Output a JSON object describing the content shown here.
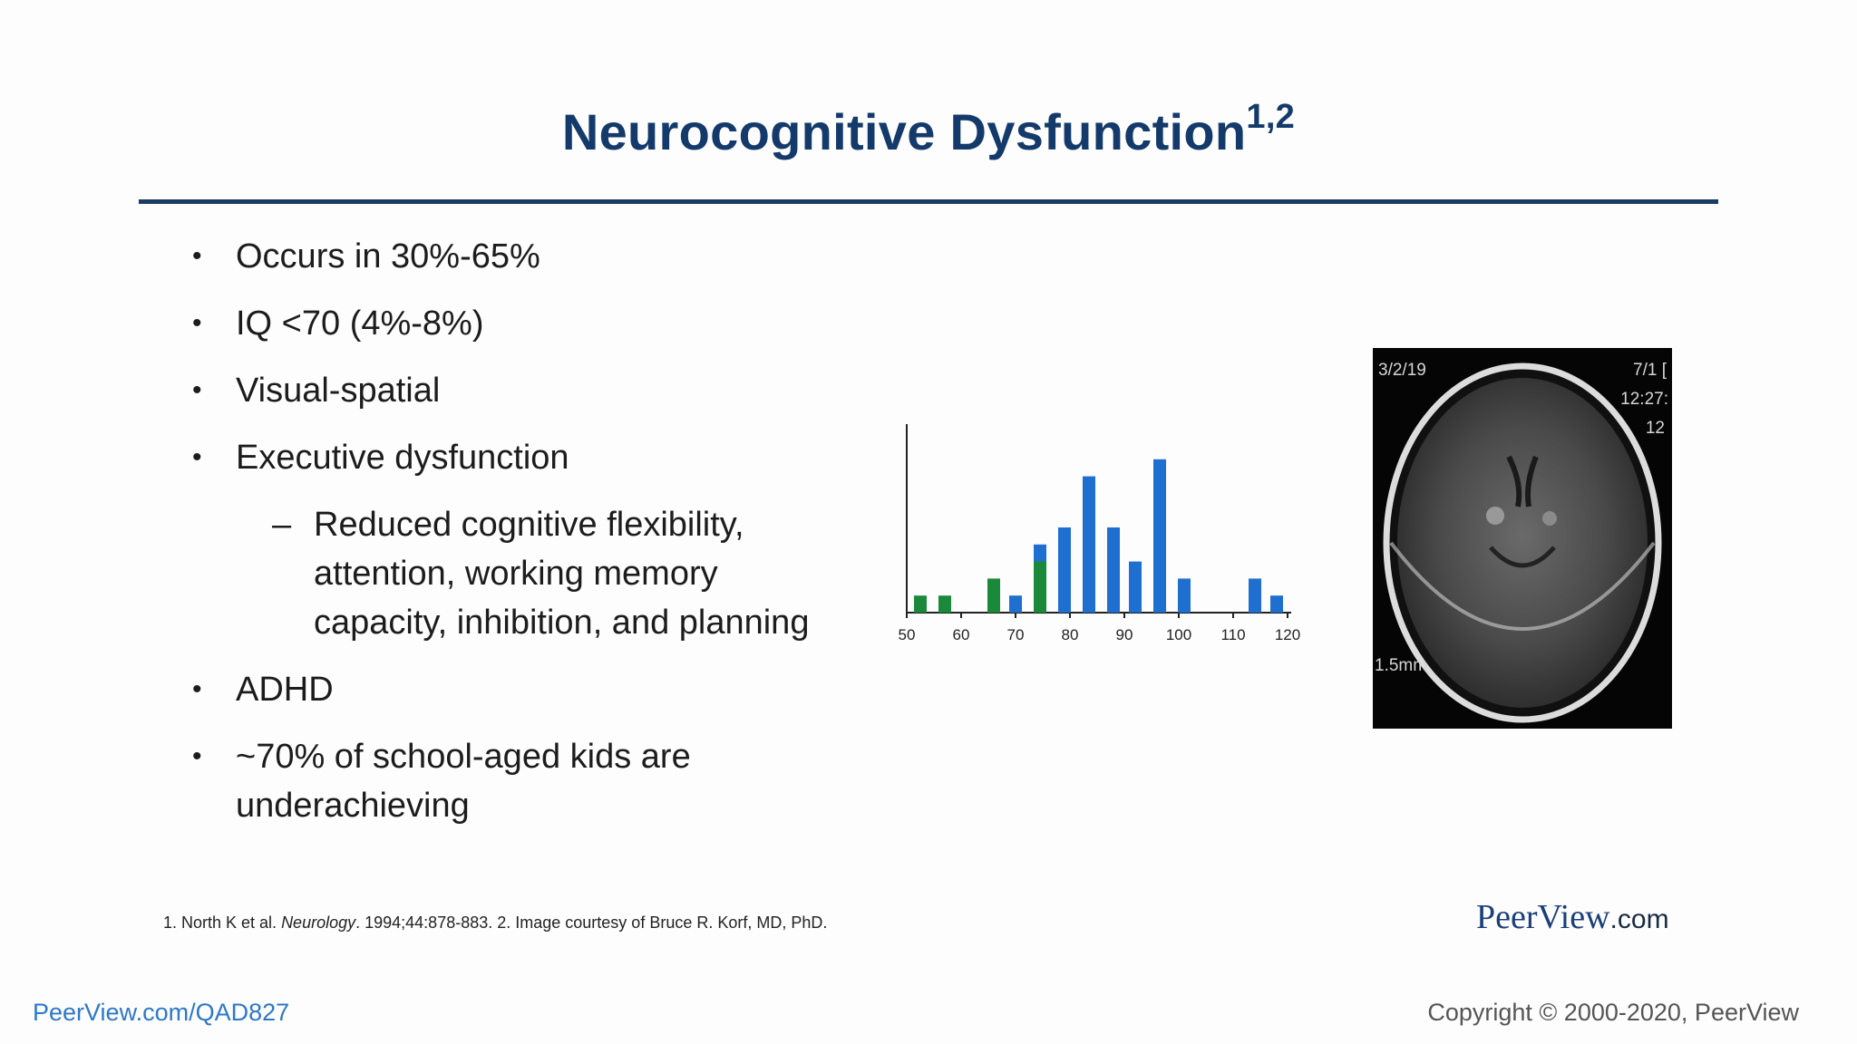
{
  "slide": {
    "title": "Neurocognitive Dysfunction",
    "title_sup": "1,2",
    "bullets": [
      "Occurs in 30%-65%",
      "IQ <70 (4%-8%)",
      "Visual-spatial",
      "Executive dysfunction"
    ],
    "sub_bullet": "Reduced cognitive flexibility, attention, working memory capacity, inhibition, and planning",
    "bullets_after": [
      "ADHD",
      "~70% of school-aged kids are underachieving"
    ],
    "bullet_glyph": "•",
    "dash_glyph": "–"
  },
  "chart_data": {
    "type": "bar",
    "xlim": [
      50,
      120
    ],
    "x_ticks": [
      "50",
      "60",
      "70",
      "80",
      "90",
      "100",
      "110",
      "120"
    ],
    "ylim": [
      0,
      10
    ],
    "colors": {
      "blue": "#1f6fd0",
      "green": "#1a8a3a"
    },
    "series": [
      {
        "color": "green",
        "x": [
          52.5,
          57,
          66,
          74.5
        ],
        "values": [
          1,
          1,
          2,
          3
        ]
      },
      {
        "color": "blue",
        "x": [
          70,
          74.5,
          79,
          83.5,
          88,
          92,
          96.5,
          101,
          114,
          118
        ],
        "values": [
          1,
          4,
          5,
          8,
          5,
          3,
          9,
          2,
          2,
          1
        ]
      }
    ]
  },
  "image": {
    "date": "3/2/19",
    "top_right": "7/1 [",
    "time": "12:27:",
    "num": "12",
    "scale": "1.5mm"
  },
  "footnote": {
    "pre": "1. North K et al. ",
    "journal": "Neurology",
    "post": ". 1994;44:878-883. 2. Image courtesy of Bruce R. Korf, MD, PhD."
  },
  "brand": {
    "name": "PeerView",
    "suffix": ".com"
  },
  "footer": {
    "link": "PeerView.com/QAD827",
    "copyright": "Copyright © 2000-2020, PeerView"
  }
}
